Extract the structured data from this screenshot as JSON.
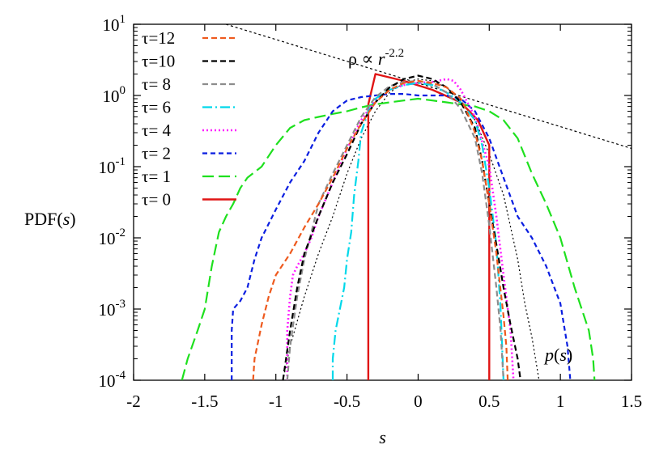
{
  "chart_data": {
    "type": "line",
    "title": "",
    "xlabel": "s",
    "ylabel": "PDF(s)",
    "xlim": [
      -2,
      1.5
    ],
    "ylim": [
      0.0001,
      10
    ],
    "yscale": "log",
    "grid": false,
    "legend_position": "top-left",
    "x_ticks": [
      "-2",
      "-1.5",
      "-1",
      "-0.5",
      "0",
      "0.5",
      "1",
      "1.5"
    ],
    "y_ticks": [
      {
        "base": "10",
        "exp": "-4"
      },
      {
        "base": "10",
        "exp": "-3"
      },
      {
        "base": "10",
        "exp": "-2"
      },
      {
        "base": "10",
        "exp": "-1"
      },
      {
        "base": "10",
        "exp": "0"
      },
      {
        "base": "10",
        "exp": "1"
      }
    ],
    "annotations": {
      "powerlaw_prefix": "ρ ∝ ",
      "powerlaw_var": "r",
      "powerlaw_exp": "-2.2",
      "ps_var": "p",
      "ps_rest": "(s)"
    },
    "series": [
      {
        "name": "τ=12",
        "color": "#ee5a1e",
        "dash": "7,4",
        "width": 2.2,
        "x": [
          -1.16,
          -1.15,
          -1.1,
          -1.05,
          -1.0,
          -0.9,
          -0.8,
          -0.7,
          -0.6,
          -0.5,
          -0.4,
          -0.3,
          -0.2,
          -0.1,
          0.0,
          0.1,
          0.2,
          0.3,
          0.35,
          0.4,
          0.45,
          0.5,
          0.55,
          0.6,
          0.62,
          0.63
        ],
        "y": [
          0.0001,
          0.0002,
          0.0006,
          0.0015,
          0.003,
          0.006,
          0.014,
          0.03,
          0.07,
          0.18,
          0.4,
          0.8,
          1.2,
          1.5,
          1.6,
          1.5,
          1.3,
          0.9,
          0.55,
          0.3,
          0.12,
          0.03,
          0.006,
          0.0008,
          0.0003,
          0.0001
        ]
      },
      {
        "name": "τ=10",
        "color": "#000000",
        "dash": "7,4",
        "width": 2.2,
        "x": [
          -0.95,
          -0.9,
          -0.85,
          -0.8,
          -0.7,
          -0.6,
          -0.5,
          -0.4,
          -0.3,
          -0.2,
          -0.1,
          0.0,
          0.1,
          0.2,
          0.3,
          0.4,
          0.45,
          0.5,
          0.55,
          0.6,
          0.65,
          0.7,
          0.72
        ],
        "y": [
          0.0001,
          0.0005,
          0.002,
          0.006,
          0.02,
          0.06,
          0.15,
          0.4,
          0.8,
          1.3,
          1.7,
          1.9,
          1.7,
          1.3,
          0.8,
          0.35,
          0.12,
          0.03,
          0.008,
          0.002,
          0.0006,
          0.0002,
          0.0001
        ]
      },
      {
        "name": "τ= 8",
        "color": "#8c8c8c",
        "dash": "7,4",
        "width": 2.2,
        "x": [
          -0.92,
          -0.9,
          -0.85,
          -0.8,
          -0.75,
          -0.7,
          -0.6,
          -0.5,
          -0.4,
          -0.3,
          -0.2,
          -0.1,
          0.0,
          0.1,
          0.2,
          0.3,
          0.4,
          0.45,
          0.5,
          0.55,
          0.58,
          0.6
        ],
        "y": [
          0.0001,
          0.0003,
          0.0015,
          0.005,
          0.012,
          0.03,
          0.08,
          0.2,
          0.5,
          0.95,
          1.35,
          1.55,
          1.6,
          1.45,
          1.1,
          0.65,
          0.25,
          0.08,
          0.015,
          0.002,
          0.0005,
          0.0001
        ]
      },
      {
        "name": "τ= 6",
        "color": "#00d8ea",
        "dash": "12,4,2,4",
        "width": 2.2,
        "x": [
          -0.6,
          -0.6,
          -0.58,
          -0.55,
          -0.52,
          -0.5,
          -0.47,
          -0.45,
          -0.42,
          -0.4,
          -0.35,
          -0.3,
          -0.2,
          -0.1,
          0.0,
          0.1,
          0.2,
          0.3,
          0.4,
          0.45,
          0.5,
          0.55,
          0.58,
          0.6
        ],
        "y": [
          0.0001,
          0.0002,
          0.0005,
          0.001,
          0.002,
          0.005,
          0.012,
          0.04,
          0.12,
          0.3,
          0.6,
          0.9,
          1.2,
          1.4,
          1.5,
          1.4,
          1.1,
          0.8,
          0.45,
          0.2,
          0.05,
          0.008,
          0.001,
          0.0001
        ]
      },
      {
        "name": "τ= 4",
        "color": "#ff1bff",
        "dash": "2,3",
        "width": 2.6,
        "x": [
          -0.92,
          -0.92,
          -0.9,
          -0.88,
          -0.85,
          -0.8,
          -0.75,
          -0.7,
          -0.6,
          -0.5,
          -0.4,
          -0.3,
          -0.2,
          -0.1,
          0.0,
          0.1,
          0.2,
          0.25,
          0.3,
          0.4,
          0.5,
          0.55,
          0.6,
          0.65,
          0.67
        ],
        "y": [
          0.0001,
          0.0005,
          0.0015,
          0.003,
          0.004,
          0.006,
          0.01,
          0.02,
          0.06,
          0.18,
          0.45,
          0.85,
          1.2,
          1.4,
          1.5,
          1.55,
          1.7,
          1.6,
          1.2,
          0.5,
          0.1,
          0.02,
          0.003,
          0.0005,
          0.0001
        ]
      },
      {
        "name": "τ= 2",
        "color": "#0a1ee0",
        "dash": "6,4",
        "width": 2.2,
        "x": [
          -1.31,
          -1.31,
          -1.3,
          -1.25,
          -1.2,
          -1.15,
          -1.1,
          -1.0,
          -0.9,
          -0.8,
          -0.7,
          -0.6,
          -0.5,
          -0.4,
          -0.3,
          -0.2,
          -0.1,
          0.0,
          0.1,
          0.2,
          0.3,
          0.4,
          0.5,
          0.6,
          0.7,
          0.8,
          0.9,
          1.0,
          1.05,
          1.07
        ],
        "y": [
          0.0001,
          0.0005,
          0.001,
          0.0013,
          0.002,
          0.005,
          0.01,
          0.025,
          0.06,
          0.12,
          0.3,
          0.6,
          0.85,
          0.95,
          1.0,
          1.05,
          1.05,
          1.0,
          1.0,
          1.0,
          0.9,
          0.6,
          0.25,
          0.07,
          0.02,
          0.01,
          0.004,
          0.0012,
          0.0003,
          0.0001
        ]
      },
      {
        "name": "τ= 1",
        "color": "#1ee01e",
        "dash": "14,6",
        "width": 2.2,
        "x": [
          -1.66,
          -1.62,
          -1.55,
          -1.5,
          -1.45,
          -1.4,
          -1.35,
          -1.3,
          -1.25,
          -1.2,
          -1.1,
          -1.0,
          -0.9,
          -0.8,
          -0.7,
          -0.6,
          -0.5,
          -0.4,
          -0.3,
          -0.2,
          -0.1,
          0.0,
          0.1,
          0.2,
          0.3,
          0.4,
          0.5,
          0.6,
          0.7,
          0.8,
          0.9,
          1.0,
          1.1,
          1.2,
          1.23,
          1.24
        ],
        "y": [
          0.0001,
          0.0002,
          0.0005,
          0.001,
          0.004,
          0.012,
          0.02,
          0.03,
          0.05,
          0.07,
          0.1,
          0.2,
          0.35,
          0.45,
          0.5,
          0.55,
          0.6,
          0.68,
          0.75,
          0.8,
          0.85,
          0.9,
          0.85,
          0.8,
          0.75,
          0.7,
          0.6,
          0.45,
          0.25,
          0.08,
          0.03,
          0.01,
          0.002,
          0.0005,
          0.0002,
          0.0001
        ]
      },
      {
        "name": "τ= 0",
        "color": "#e01414",
        "dash": "",
        "width": 2.4,
        "x": [
          -0.35,
          -0.35,
          -0.3,
          -0.1,
          0.1,
          0.3,
          0.42,
          0.5,
          0.5
        ],
        "y": [
          0.0001,
          0.75,
          2.0,
          1.6,
          1.2,
          0.8,
          0.45,
          0.2,
          0.0001
        ]
      }
    ],
    "reference_lines": [
      {
        "label": "ρ ∝ r^-2.2",
        "color": "#000000",
        "dash": "3,3",
        "width": 1.2,
        "x": [
          -1.35,
          1.5
        ],
        "y": [
          10,
          0.18
        ]
      },
      {
        "label": "p(s)",
        "color": "#000000",
        "dash": "2,3",
        "width": 1.2,
        "x": [
          -0.95,
          -0.9,
          -0.8,
          -0.7,
          -0.6,
          -0.5,
          -0.4,
          -0.3,
          -0.2,
          -0.1,
          0.0,
          0.1,
          0.2,
          0.3,
          0.4,
          0.5,
          0.6,
          0.7,
          0.75,
          0.8,
          0.85
        ],
        "y": [
          0.0001,
          0.0003,
          0.0015,
          0.006,
          0.02,
          0.08,
          0.25,
          0.6,
          1.1,
          1.5,
          1.7,
          1.6,
          1.3,
          0.85,
          0.45,
          0.15,
          0.04,
          0.005,
          0.0012,
          0.0004,
          0.0001
        ]
      }
    ]
  }
}
